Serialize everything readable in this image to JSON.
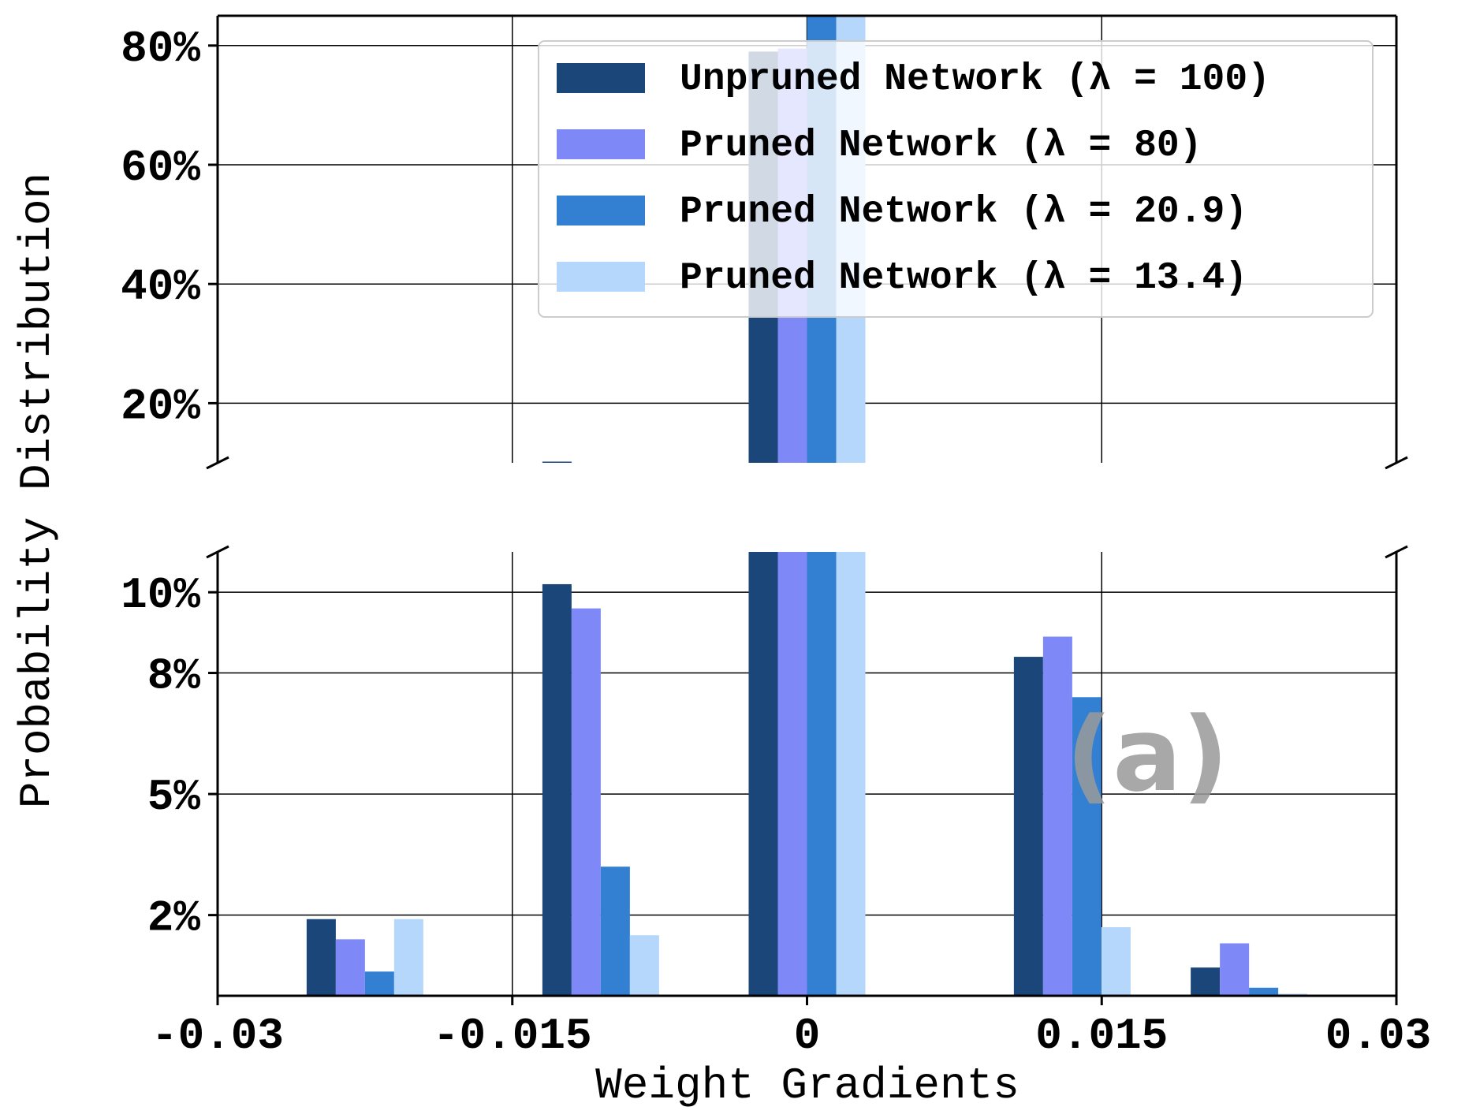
{
  "chart_data": {
    "type": "bar",
    "x": [
      -0.0225,
      -0.0105,
      0.0,
      0.0135,
      0.0225
    ],
    "series": [
      {
        "name": "Unpruned Network (λ = 100)",
        "color": "#1a4679",
        "values": [
          1.9,
          10.2,
          79.0,
          8.4,
          0.7
        ]
      },
      {
        "name": "Pruned Network (λ = 80)",
        "color": "#7f88f7",
        "values": [
          1.4,
          9.6,
          79.5,
          8.9,
          1.3
        ]
      },
      {
        "name": "Pruned Network (λ = 20.9)",
        "color": "#3380d2",
        "values": [
          0.6,
          3.2,
          86.0,
          7.4,
          0.2
        ]
      },
      {
        "name": "Pruned Network (λ = 13.4)",
        "color": "#b4d7fb",
        "values": [
          1.9,
          1.5,
          86.0,
          1.7,
          0.05
        ]
      }
    ],
    "xlabel": "Weight Gradients",
    "ylabel": "Probability Distribution",
    "xlim": [
      -0.03,
      0.03
    ],
    "xticks": [
      -0.03,
      -0.015,
      0,
      0.015,
      0.03
    ],
    "xtick_labels": [
      "-0.03",
      "-0.015",
      "0",
      "0.015",
      "0.03"
    ],
    "broken_y_axis": true,
    "ylim_lower": [
      0,
      11
    ],
    "ylim_upper": [
      10,
      85
    ],
    "yticks_lower": [
      2,
      5,
      8,
      10
    ],
    "ytick_labels_lower": [
      "2%",
      "5%",
      "8%",
      "10%"
    ],
    "yticks_upper": [
      20,
      40,
      60,
      80
    ],
    "ytick_labels_upper": [
      "20%",
      "40%",
      "60%",
      "80%"
    ],
    "grid": true,
    "legend_position": "upper-right",
    "annotation": "(a)"
  }
}
